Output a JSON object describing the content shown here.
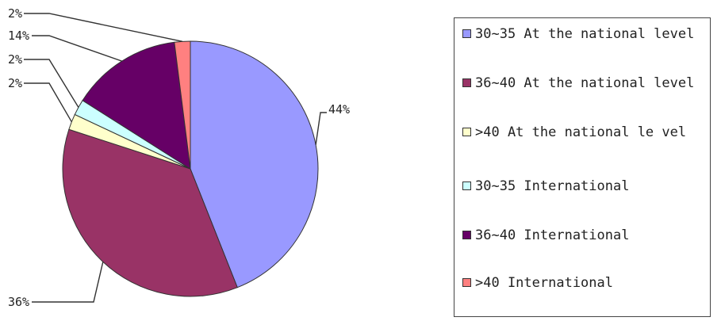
{
  "chart_data": {
    "type": "pie",
    "slices": [
      {
        "label": "30~35 At the national level",
        "value": 44,
        "display": "44%",
        "color": "#9999ff"
      },
      {
        "label": "36~40 At the national level",
        "value": 36,
        "display": "36%",
        "color": "#993366"
      },
      {
        "label": ">40 At the national le vel",
        "value": 2,
        "display": "2%",
        "color": "#ffffcc"
      },
      {
        "label": "30~35 International",
        "value": 2,
        "display": "2%",
        "color": "#ccffff"
      },
      {
        "label": "36~40 International",
        "value": 14,
        "display": "14%",
        "color": "#660066"
      },
      {
        "label": ">40 International",
        "value": 2,
        "display": "2%",
        "color": "#ff8080"
      }
    ],
    "legend_position": "right",
    "start_angle": "12 o'clock",
    "direction": "clockwise"
  }
}
